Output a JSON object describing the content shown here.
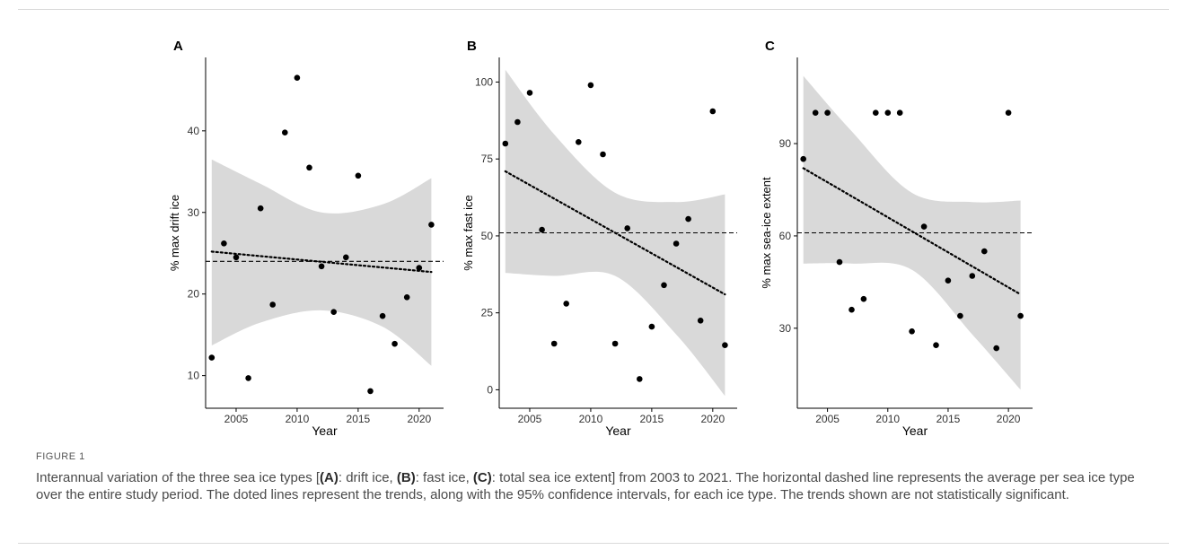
{
  "colors": {
    "ribbon": "#d9d9d9",
    "points": "#000000",
    "lines": "#000000",
    "axis": "#000000"
  },
  "figure_label": "FIGURE 1",
  "caption": {
    "p1": "Interannual variation of the three sea ice types [",
    "a": "(A)",
    "p2": ": drift ice, ",
    "b": "(B)",
    "p3": ": fast ice, ",
    "c": "(C)",
    "p4": ": total sea ice extent] from 2003 to 2021. The horizontal dashed line represents the average per sea ice type over the entire study period. The doted lines represent the trends, along with the 95% confidence intervals, for each ice type. The trends shown are not statistically significant."
  },
  "chart_data": [
    {
      "type": "scatter",
      "panel": "A",
      "xlabel": "Year",
      "ylabel": "% max drift ice",
      "xlim": [
        2002.5,
        2022
      ],
      "ylim": [
        6,
        49
      ],
      "xticks": [
        2005,
        2010,
        2015,
        2020
      ],
      "yticks": [
        10,
        20,
        30,
        40
      ],
      "grid": false,
      "points": [
        [
          2003,
          12.2
        ],
        [
          2004,
          26.2
        ],
        [
          2005,
          24.5
        ],
        [
          2006,
          9.7
        ],
        [
          2007,
          30.5
        ],
        [
          2008,
          18.7
        ],
        [
          2009,
          39.8
        ],
        [
          2010,
          46.5
        ],
        [
          2011,
          35.5
        ],
        [
          2012,
          23.4
        ],
        [
          2013,
          17.8
        ],
        [
          2014,
          24.5
        ],
        [
          2015,
          34.5
        ],
        [
          2016,
          8.1
        ],
        [
          2017,
          17.3
        ],
        [
          2018,
          13.9
        ],
        [
          2019,
          19.6
        ],
        [
          2020,
          23.2
        ],
        [
          2021,
          28.5
        ]
      ],
      "mean": 24.0,
      "trend": {
        "x": [
          2003,
          2021
        ],
        "y": [
          25.2,
          22.7
        ]
      },
      "ci_upper": [
        [
          2003,
          36.5
        ],
        [
          2007,
          33.5
        ],
        [
          2012,
          30.0
        ],
        [
          2017,
          31.0
        ],
        [
          2021,
          34.2
        ]
      ],
      "ci_lower": [
        [
          2003,
          13.7
        ],
        [
          2007,
          16.5
        ],
        [
          2012,
          18.0
        ],
        [
          2017,
          16.0
        ],
        [
          2021,
          11.2
        ]
      ]
    },
    {
      "type": "scatter",
      "panel": "B",
      "xlabel": "Year",
      "ylabel": "% max fast ice",
      "xlim": [
        2002.5,
        2022
      ],
      "ylim": [
        -6,
        108
      ],
      "xticks": [
        2005,
        2010,
        2015,
        2020
      ],
      "yticks": [
        0,
        25,
        50,
        75,
        100
      ],
      "grid": false,
      "points": [
        [
          2003,
          80
        ],
        [
          2004,
          87
        ],
        [
          2005,
          96.5
        ],
        [
          2006,
          52
        ],
        [
          2007,
          15
        ],
        [
          2008,
          28
        ],
        [
          2009,
          80.5
        ],
        [
          2010,
          99
        ],
        [
          2011,
          76.5
        ],
        [
          2012,
          15
        ],
        [
          2013,
          52.5
        ],
        [
          2014,
          3.5
        ],
        [
          2015,
          20.5
        ],
        [
          2016,
          34
        ],
        [
          2017,
          47.5
        ],
        [
          2018,
          55.5
        ],
        [
          2019,
          22.5
        ],
        [
          2020,
          90.5
        ],
        [
          2021,
          14.5
        ]
      ],
      "mean": 51.0,
      "trend": {
        "x": [
          2003,
          2021
        ],
        "y": [
          71,
          31
        ]
      },
      "ci_upper": [
        [
          2003,
          104
        ],
        [
          2007,
          83
        ],
        [
          2012,
          64
        ],
        [
          2017,
          61
        ],
        [
          2021,
          63.5
        ]
      ],
      "ci_lower": [
        [
          2003,
          38
        ],
        [
          2007,
          37
        ],
        [
          2012,
          37
        ],
        [
          2017,
          18
        ],
        [
          2021,
          -2
        ]
      ]
    },
    {
      "type": "scatter",
      "panel": "C",
      "xlabel": "Year",
      "ylabel": "% max sea-ice extent",
      "xlim": [
        2002.5,
        2022
      ],
      "ylim": [
        4,
        118
      ],
      "xticks": [
        2005,
        2010,
        2015,
        2020
      ],
      "yticks": [
        30,
        60,
        90
      ],
      "grid": false,
      "points": [
        [
          2003,
          85
        ],
        [
          2004,
          100
        ],
        [
          2005,
          100
        ],
        [
          2006,
          51.5
        ],
        [
          2007,
          36
        ],
        [
          2008,
          39.5
        ],
        [
          2009,
          100
        ],
        [
          2010,
          100
        ],
        [
          2011,
          100
        ],
        [
          2012,
          29
        ],
        [
          2013,
          63
        ],
        [
          2014,
          24.5
        ],
        [
          2015,
          45.5
        ],
        [
          2016,
          34
        ],
        [
          2017,
          47
        ],
        [
          2018,
          55
        ],
        [
          2019,
          23.5
        ],
        [
          2020,
          100
        ],
        [
          2021,
          34
        ]
      ],
      "mean": 61.0,
      "trend": {
        "x": [
          2003,
          2021
        ],
        "y": [
          82,
          41
        ]
      },
      "ci_upper": [
        [
          2003,
          112
        ],
        [
          2007,
          94
        ],
        [
          2012,
          74
        ],
        [
          2017,
          71
        ],
        [
          2021,
          71.5
        ]
      ],
      "ci_lower": [
        [
          2003,
          51
        ],
        [
          2007,
          51
        ],
        [
          2012,
          49
        ],
        [
          2017,
          28
        ],
        [
          2021,
          10
        ]
      ]
    }
  ]
}
